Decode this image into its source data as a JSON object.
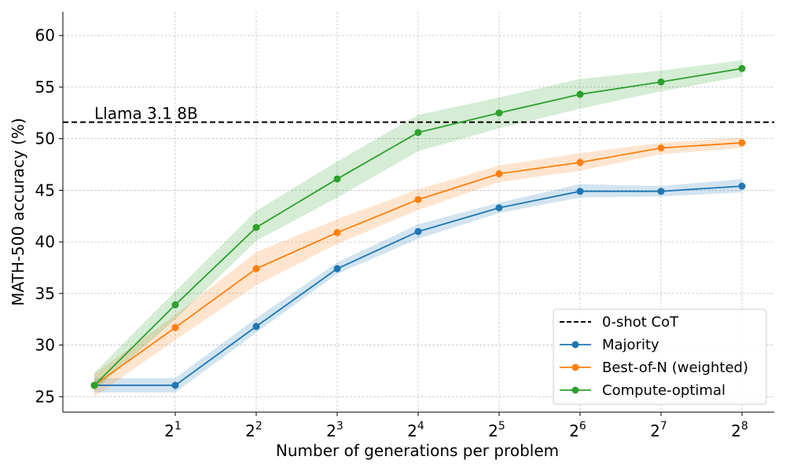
{
  "chart_data": {
    "type": "line",
    "xlabel": "Number of generations per problem",
    "ylabel": "MATH-500 accuracy (%)",
    "ylim": [
      23.5,
      62.3
    ],
    "yticks": [
      25,
      30,
      35,
      40,
      45,
      50,
      55,
      60
    ],
    "x": [
      1,
      2,
      4,
      8,
      16,
      32,
      64,
      128,
      256
    ],
    "x_scale": "log2",
    "xtick_labels": [
      {
        "value": 2,
        "base": "2",
        "exp": "1"
      },
      {
        "value": 4,
        "base": "2",
        "exp": "2"
      },
      {
        "value": 8,
        "base": "2",
        "exp": "3"
      },
      {
        "value": 16,
        "base": "2",
        "exp": "4"
      },
      {
        "value": 32,
        "base": "2",
        "exp": "5"
      },
      {
        "value": 64,
        "base": "2",
        "exp": "6"
      },
      {
        "value": 128,
        "base": "2",
        "exp": "7"
      },
      {
        "value": 256,
        "base": "2",
        "exp": "8"
      }
    ],
    "grid": true,
    "legend_position": "lower-right",
    "reference_line": {
      "name": "0-shot CoT",
      "y": 51.6,
      "annotation": "Llama 3.1 8B",
      "style": "dashed",
      "color": "#000000"
    },
    "series": [
      {
        "name": "Majority",
        "color": "#1f77b4",
        "values": [
          26.1,
          26.1,
          31.8,
          37.4,
          41.0,
          43.3,
          44.9,
          44.9,
          45.4
        ],
        "lower": [
          25.4,
          25.4,
          31.2,
          36.9,
          40.3,
          42.8,
          44.3,
          44.4,
          44.8
        ],
        "upper": [
          26.8,
          26.8,
          32.6,
          38.0,
          41.7,
          43.8,
          45.6,
          45.4,
          46.1
        ]
      },
      {
        "name": "Best-of-N (weighted)",
        "color": "#ff7f0e",
        "values": [
          26.1,
          31.7,
          37.4,
          40.9,
          44.1,
          46.6,
          47.7,
          49.1,
          49.6
        ],
        "lower": [
          25.0,
          30.5,
          35.8,
          39.8,
          43.1,
          45.8,
          46.9,
          48.5,
          49.1
        ],
        "upper": [
          27.2,
          32.9,
          39.0,
          42.2,
          45.1,
          47.4,
          48.6,
          49.6,
          50.1
        ]
      },
      {
        "name": "Compute-optimal",
        "color": "#2ca02c",
        "values": [
          26.1,
          33.9,
          41.4,
          46.1,
          50.6,
          52.5,
          54.3,
          55.5,
          56.8
        ],
        "lower": [
          25.6,
          32.5,
          40.1,
          44.3,
          48.8,
          51.0,
          52.9,
          54.6,
          56.0
        ],
        "upper": [
          27.3,
          35.2,
          43.0,
          47.8,
          52.3,
          54.0,
          55.8,
          56.6,
          57.6
        ]
      }
    ]
  }
}
